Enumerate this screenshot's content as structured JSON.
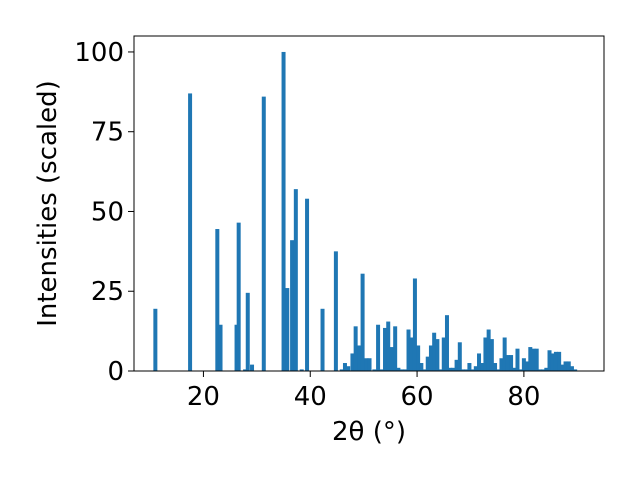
{
  "chart_data": {
    "type": "bar",
    "title": "",
    "xlabel": "2θ (°)",
    "ylabel": "Intensities (scaled)",
    "xlim": [
      7,
      95
    ],
    "ylim": [
      0,
      105
    ],
    "xticks": [
      20,
      40,
      60,
      80
    ],
    "yticks": [
      0,
      25,
      50,
      75,
      100
    ],
    "grid": false,
    "bar_color": "#1f77b4",
    "x": [
      11.0,
      17.5,
      22.6,
      23.2,
      26.2,
      26.6,
      27.8,
      28.3,
      29.1,
      31.3,
      35.0,
      35.3,
      35.7,
      36.6,
      37.3,
      38.4,
      39.4,
      42.3,
      44.8,
      45.9,
      46.5,
      47.1,
      47.9,
      48.5,
      49.2,
      49.8,
      50.5,
      51.1,
      52.0,
      52.7,
      53.4,
      54.0,
      54.6,
      55.3,
      55.9,
      56.5,
      57.2,
      57.8,
      58.4,
      59.0,
      59.6,
      60.2,
      60.8,
      61.4,
      62.0,
      62.6,
      63.2,
      63.8,
      64.4,
      65.0,
      65.6,
      66.2,
      66.8,
      67.4,
      68.0,
      68.6,
      69.2,
      69.8,
      70.4,
      71.0,
      71.6,
      72.2,
      72.8,
      73.4,
      74.0,
      74.6,
      75.2,
      75.8,
      76.4,
      77.0,
      77.6,
      78.2,
      78.8,
      79.4,
      80.0,
      80.6,
      81.2,
      81.8,
      82.4,
      83.0,
      83.6,
      84.2,
      84.8,
      85.4,
      86.0,
      86.6,
      87.2,
      87.8,
      88.4,
      89.0,
      89.6
    ],
    "values": [
      19.5,
      87.0,
      44.5,
      14.5,
      14.5,
      46.5,
      0.5,
      24.5,
      2.0,
      86.0,
      100.0,
      0.5,
      26.0,
      41.0,
      57.0,
      0.5,
      54.0,
      19.5,
      37.5,
      0.5,
      2.5,
      1.5,
      5.5,
      14.0,
      8.0,
      30.5,
      4.0,
      4.0,
      0.5,
      14.5,
      0.5,
      13.5,
      15.5,
      7.5,
      14.0,
      1.0,
      0.5,
      0.5,
      13.0,
      10.5,
      29.0,
      8.0,
      2.5,
      0.5,
      4.5,
      8.0,
      12.0,
      10.0,
      0.5,
      10.5,
      17.5,
      1.0,
      1.0,
      3.5,
      9.0,
      0.5,
      0.5,
      2.5,
      0.5,
      1.5,
      5.5,
      2.5,
      10.5,
      13.0,
      10.0,
      2.5,
      0.5,
      4.0,
      10.5,
      5.0,
      5.0,
      1.0,
      7.0,
      0.5,
      4.0,
      3.0,
      7.5,
      7.0,
      7.0,
      0.5,
      0.5,
      1.0,
      6.5,
      5.5,
      6.0,
      6.0,
      2.0,
      3.0,
      3.0,
      1.5,
      0.5
    ]
  }
}
